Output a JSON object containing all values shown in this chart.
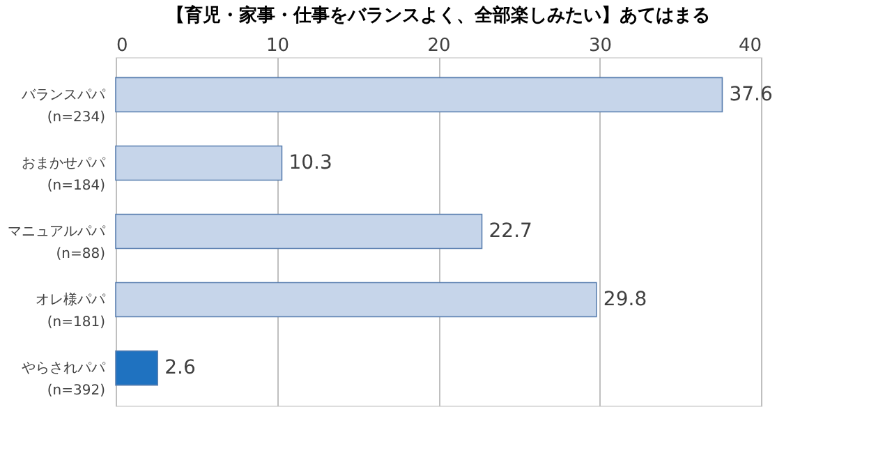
{
  "chart_data": {
    "type": "bar",
    "orientation": "horizontal",
    "title": "【育児・家事・仕事をバランスよく、全部楽しみたい】あてはまる",
    "categories": [
      "バランスパパ\n(n=234)",
      "おまかせパパ\n(n=184)",
      "マニュアルパパ\n(n=88)",
      "オレ様パパ\n(n=181)",
      "やらされパパ\n(n=392)"
    ],
    "values": [
      37.6,
      10.3,
      22.7,
      29.8,
      2.6
    ],
    "colors": [
      "#c6d5ea",
      "#c6d5ea",
      "#c6d5ea",
      "#c6d5ea",
      "#1f72c0"
    ],
    "xlim": [
      0,
      40
    ],
    "xticks": [
      0,
      10,
      20,
      30,
      40
    ],
    "grid": "x",
    "data_labels": true
  }
}
